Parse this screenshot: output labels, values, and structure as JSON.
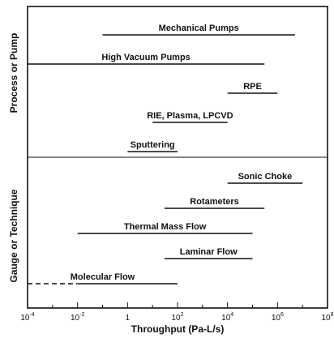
{
  "chart_data": {
    "type": "range-bar",
    "xlabel": "Throughput (Pa-L/s)",
    "xscale": "log",
    "xlim_exponent": [
      -4,
      8
    ],
    "x_ticks": [
      {
        "base": "10",
        "exp": "-4"
      },
      {
        "base": "10",
        "exp": "-2"
      },
      {
        "base": "1",
        "exp": ""
      },
      {
        "base": "10",
        "exp": "2"
      },
      {
        "base": "10",
        "exp": "4"
      },
      {
        "base": "10",
        "exp": "6"
      },
      {
        "base": "10",
        "exp": "8"
      }
    ],
    "group_labels": [
      "Process or Pump",
      "Gauge or Technique"
    ],
    "ranges": [
      {
        "label": "Mechanical Pumps",
        "x_min": 0.1,
        "x_max": 5000000,
        "group": 0,
        "line": "solid"
      },
      {
        "label": "High Vacuum Pumps",
        "x_min": 0.0001,
        "x_max": 300000,
        "group": 0,
        "line": "solid"
      },
      {
        "label": "RPE",
        "x_min": 10000,
        "x_max": 1000000,
        "group": 0,
        "line": "solid"
      },
      {
        "label": "RIE, Plasma, LPCVD",
        "x_min": 10,
        "x_max": 10000,
        "group": 0,
        "line": "solid"
      },
      {
        "label": "Sputtering",
        "x_min": 1,
        "x_max": 100,
        "group": 0,
        "line": "solid"
      },
      {
        "label": "Sonic Choke",
        "x_min": 10000,
        "x_max": 10000000,
        "group": 1,
        "line": "solid"
      },
      {
        "label": "Rotameters",
        "x_min": 30,
        "x_max": 300000,
        "group": 1,
        "line": "solid"
      },
      {
        "label": "Thermal Mass Flow",
        "x_min": 0.01,
        "x_max": 100000,
        "group": 1,
        "line": "solid"
      },
      {
        "label": "Laminar Flow",
        "x_min": 30,
        "x_max": 100000,
        "group": 1,
        "line": "solid"
      },
      {
        "label": "Molecular Flow",
        "x_min": 0.0001,
        "x_max": 100,
        "group": 1,
        "line": "dashed-to-solid",
        "dash_until": 0.01
      }
    ]
  }
}
